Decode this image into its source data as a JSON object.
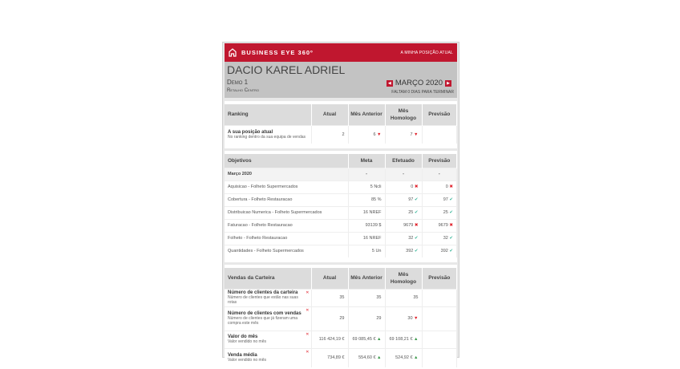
{
  "header": {
    "brand": "BUSINESS EYE 360º",
    "link": "A MINHA POSIÇÃO ATUAL"
  },
  "profile": {
    "name": "DACIO KAREL ADRIEL",
    "group": "Demo 1",
    "area": "Retalho Centro",
    "month": "MARÇO 2020",
    "remaining": "FALTAM 0 DIAS PARA TERMINAR"
  },
  "ranking": {
    "headers": [
      "Ranking",
      "Atual",
      "Mês Anterior",
      "Mês Homologo",
      "Previsão"
    ],
    "row": {
      "title": "A sua posição atual",
      "sub": "No ranking dentro da sua equipa de vendas",
      "atual": "2",
      "anterior": "6",
      "homologo": "7",
      "previsao": ""
    }
  },
  "objetivos": {
    "headers": [
      "Objetivos",
      "Meta",
      "Efetuado",
      "Previsão"
    ],
    "period": {
      "label": "Março 2020",
      "meta": "-",
      "efetuado": "-",
      "previsao": "-"
    },
    "rows": [
      {
        "label": "Aquisicao - Folheto Supermercados",
        "meta": "5 Ncli",
        "efetuado": "0",
        "previsao": "0",
        "status": "fail"
      },
      {
        "label": "Cobertura - Folheto Restauracao",
        "meta": "85 %",
        "efetuado": "97",
        "previsao": "97",
        "status": "ok"
      },
      {
        "label": "Distribuicao Numerica - Folheto Supermercados",
        "meta": "16 NREF",
        "efetuado": "25",
        "previsao": "25",
        "status": "ok"
      },
      {
        "label": "Faturacao - Folheto Restauracao",
        "meta": "93139 $",
        "efetuado": "9679",
        "previsao": "9679",
        "status": "fail"
      },
      {
        "label": "Folheto - Folheto Restauracao",
        "meta": "16 NREF",
        "efetuado": "32",
        "previsao": "32",
        "status": "ok"
      },
      {
        "label": "Quantidades - Folheto Supermercados",
        "meta": "5 Un",
        "efetuado": "392",
        "previsao": "392",
        "status": "ok"
      }
    ]
  },
  "vendas": {
    "headers": [
      "Vendas da Carteira",
      "Atual",
      "Mês Anterior",
      "Mês Homologo",
      "Previsão"
    ],
    "rows": [
      {
        "title": "Número de clientes da carteira",
        "sub": "Número de clientes que estão nas suas rotas",
        "atual": "35",
        "anterior": "35",
        "homologo": "35",
        "anterior_trend": "",
        "homologo_trend": ""
      },
      {
        "title": "Número de clientes com vendas",
        "sub": "Número de clientes que já fizeram uma compra este mês",
        "atual": "29",
        "anterior": "29",
        "homologo": "30",
        "anterior_trend": "",
        "homologo_trend": "down"
      },
      {
        "title": "Valor do mês",
        "sub": "Valor vendido no mês",
        "atual": "116 424,19 €",
        "anterior": "69 085,45 €",
        "homologo": "69 108,21 €",
        "anterior_trend": "up",
        "homologo_trend": "up"
      },
      {
        "title": "Venda média",
        "sub": "Valor vendido no mês",
        "atual": "734,89 €",
        "anterior": "554,60 €",
        "homologo": "524,92 €",
        "anterior_trend": "up",
        "homologo_trend": "up"
      }
    ]
  },
  "colors": {
    "brand": "#c0172f",
    "ok": "#3bb79b",
    "fail": "#e0202a",
    "up": "#3a9a4a"
  }
}
